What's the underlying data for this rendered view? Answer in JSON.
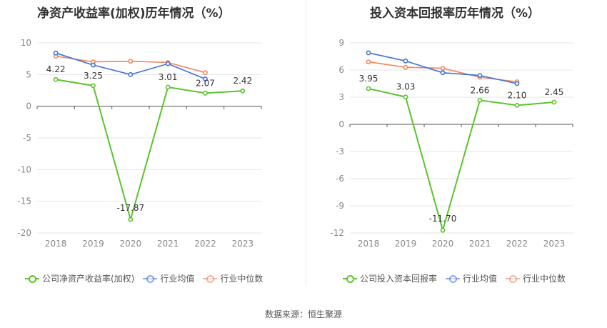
{
  "titles": {
    "left": "净资产收益率(加权)历年情况（%）",
    "right": "投入资本回报率历年情况（%）"
  },
  "legend": {
    "left": [
      "公司净资产收益率(加权)",
      "行业均值",
      "行业中位数"
    ],
    "right": [
      "公司投入资本回报率",
      "行业均值",
      "行业中位数"
    ]
  },
  "source": "数据来源：恒生聚源",
  "colors": {
    "company": "#5ac42e",
    "avg": "#3f74d8",
    "median": "#f0855f",
    "grid": "#e6e6e6",
    "axis": "#888888",
    "tick": "#888888"
  },
  "chart_data": [
    {
      "type": "line",
      "title": "净资产收益率(加权)历年情况（%）",
      "categories": [
        "2018",
        "2019",
        "2020",
        "2021",
        "2022",
        "2023"
      ],
      "ylim": [
        -20,
        10
      ],
      "yticks": [
        10,
        5,
        0,
        -5,
        -10,
        -15,
        -20
      ],
      "series": [
        {
          "name": "公司净资产收益率(加权)",
          "values": [
            4.22,
            3.25,
            -17.87,
            3.01,
            2.07,
            2.42
          ],
          "labels": [
            "4.22",
            "3.25",
            "-17.87",
            "3.01",
            "2.07",
            "2.42"
          ]
        },
        {
          "name": "行业均值",
          "values": [
            8.4,
            6.5,
            5.0,
            6.7,
            4.3,
            null
          ]
        },
        {
          "name": "行业中位数",
          "values": [
            7.9,
            7.0,
            7.1,
            6.9,
            5.3,
            null
          ]
        }
      ]
    },
    {
      "type": "line",
      "title": "投入资本回报率历年情况（%）",
      "categories": [
        "2018",
        "2019",
        "2020",
        "2021",
        "2022",
        "2023"
      ],
      "ylim": [
        -12,
        9
      ],
      "yticks": [
        9,
        6,
        3,
        0,
        -3,
        -6,
        -9,
        -12
      ],
      "series": [
        {
          "name": "公司投入资本回报率",
          "values": [
            3.95,
            3.03,
            -11.7,
            2.66,
            2.1,
            2.45
          ],
          "labels": [
            "3.95",
            "3.03",
            "-11.70",
            "2.66",
            "2.10",
            "2.45"
          ]
        },
        {
          "name": "行业均值",
          "values": [
            7.9,
            7.0,
            5.7,
            5.4,
            4.5,
            null
          ]
        },
        {
          "name": "行业中位数",
          "values": [
            6.9,
            6.3,
            6.2,
            5.2,
            4.7,
            null
          ]
        }
      ]
    }
  ]
}
